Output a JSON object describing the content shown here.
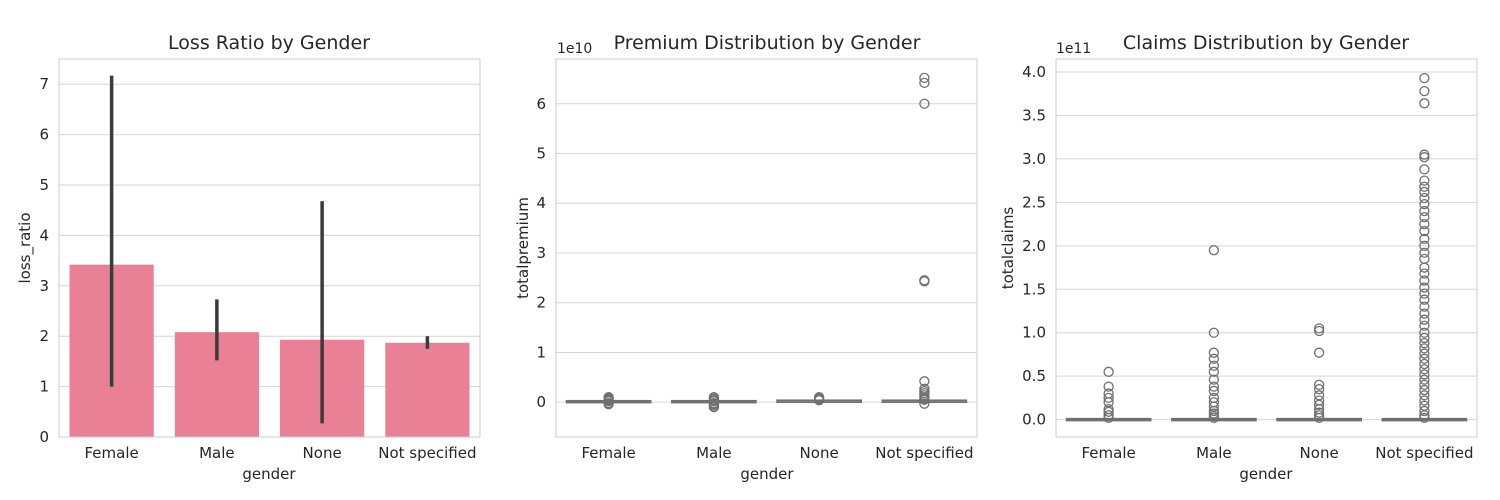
{
  "colors": {
    "bar": "#e98095",
    "errbar": "#3b3b3b",
    "box": "#ea8096",
    "boxline": "#707070",
    "grid": "#d6d6d6",
    "spine": "#cccccc"
  },
  "chart_data": [
    {
      "type": "bar",
      "title": "Loss Ratio by Gender",
      "xlabel": "gender",
      "ylabel": "loss_ratio",
      "categories": [
        "Female",
        "Male",
        "None",
        "Not specified"
      ],
      "values": [
        3.42,
        2.08,
        1.93,
        1.87
      ],
      "error_low": [
        1.0,
        1.52,
        0.27,
        1.75
      ],
      "error_high": [
        7.17,
        2.73,
        4.68,
        2.0
      ],
      "ylim": [
        0,
        7.5
      ],
      "yticks": [
        0,
        1,
        2,
        3,
        4,
        5,
        6,
        7
      ],
      "ytick_labels": [
        "0",
        "1",
        "2",
        "3",
        "4",
        "5",
        "6",
        "7"
      ],
      "grid": true
    },
    {
      "type": "box",
      "title": "Premium Distribution by Gender",
      "xlabel": "gender",
      "ylabel": "totalpremium",
      "offset_label": "1e10",
      "categories": [
        "Female",
        "Male",
        "None",
        "Not specified"
      ],
      "ylim": [
        -0.7,
        6.9
      ],
      "yticks": [
        0,
        1,
        2,
        3,
        4,
        5,
        6
      ],
      "ytick_labels": [
        "0",
        "1",
        "2",
        "3",
        "4",
        "5",
        "6"
      ],
      "grid": true,
      "boxes": [
        {
          "q1": -0.01,
          "median": 0,
          "q3": 0.01,
          "whisker_low": -0.01,
          "whisker_high": 0.01,
          "outliers": [
            0.1,
            0.08,
            0.06,
            0.04,
            0.02,
            -0.02,
            -0.04
          ]
        },
        {
          "q1": -0.01,
          "median": 0,
          "q3": 0.01,
          "whisker_low": -0.01,
          "whisker_high": 0.01,
          "outliers": [
            0.1,
            0.07,
            0.04,
            0.02,
            -0.02,
            -0.04,
            -0.07,
            -0.1
          ]
        },
        {
          "q1": -0.01,
          "median": 0,
          "q3": 0.02,
          "whisker_low": -0.01,
          "whisker_high": 0.02,
          "outliers": [
            0.1,
            0.08,
            0.06,
            0.04
          ]
        },
        {
          "q1": -0.01,
          "median": 0,
          "q3": 0.02,
          "whisker_low": -0.02,
          "whisker_high": 0.03,
          "outliers": [
            6.52,
            6.42,
            6.0,
            2.45,
            2.43,
            0.42,
            0.27,
            0.22,
            0.18,
            0.14,
            0.1,
            0.07,
            0.05,
            -0.03
          ]
        }
      ]
    },
    {
      "type": "box",
      "title": "Claims Distribution by Gender",
      "xlabel": "gender",
      "ylabel": "totalclaims",
      "offset_label": "1e11",
      "categories": [
        "Female",
        "Male",
        "None",
        "Not specified"
      ],
      "ylim": [
        -0.2,
        4.15
      ],
      "yticks": [
        0,
        0.5,
        1,
        1.5,
        2,
        2.5,
        3,
        3.5,
        4
      ],
      "ytick_labels": [
        "0.0",
        "0.5",
        "1.0",
        "1.5",
        "2.0",
        "2.5",
        "3.0",
        "3.5",
        "4.0"
      ],
      "grid": true,
      "boxes": [
        {
          "q1": 0,
          "median": 0,
          "q3": 0,
          "whisker_low": 0,
          "whisker_high": 0,
          "outliers": [
            0.55,
            0.38,
            0.3,
            0.25,
            0.2,
            0.12,
            0.09,
            0.05,
            0.02
          ]
        },
        {
          "q1": 0,
          "median": 0,
          "q3": 0,
          "whisker_low": 0,
          "whisker_high": 0,
          "outliers": [
            1.95,
            1.0,
            0.77,
            0.7,
            0.62,
            0.55,
            0.46,
            0.38,
            0.33,
            0.25,
            0.2,
            0.15,
            0.1,
            0.07,
            0.04,
            0.02
          ]
        },
        {
          "q1": 0,
          "median": 0,
          "q3": 0,
          "whisker_low": 0,
          "whisker_high": 0,
          "outliers": [
            1.05,
            1.02,
            0.77,
            0.4,
            0.35,
            0.28,
            0.22,
            0.17,
            0.12,
            0.08,
            0.05,
            0.02
          ]
        },
        {
          "q1": 0,
          "median": 0,
          "q3": 0,
          "whisker_low": 0,
          "whisker_high": 0,
          "outliers": [
            3.93,
            3.78,
            3.64,
            3.05,
            3.02,
            2.88,
            2.75,
            2.68,
            2.62,
            2.55,
            2.48,
            2.4,
            2.33,
            2.25,
            2.17,
            2.08,
            2.0,
            1.92,
            1.85,
            1.75,
            1.68,
            1.6,
            1.52,
            1.45,
            1.38,
            1.3,
            1.22,
            1.15,
            1.08,
            1.0,
            0.94,
            0.88,
            0.82,
            0.76,
            0.7,
            0.64,
            0.58,
            0.52,
            0.46,
            0.4,
            0.34,
            0.28,
            0.22,
            0.16,
            0.1,
            0.05,
            0.02
          ]
        }
      ]
    }
  ]
}
